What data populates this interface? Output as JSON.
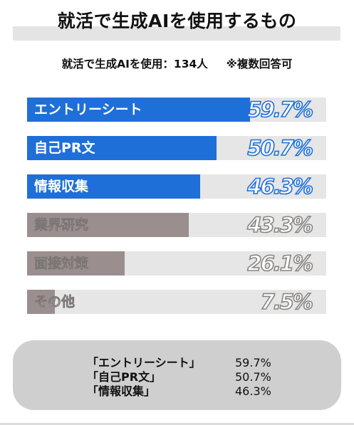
{
  "title": "就活で生成AIを使用するもの",
  "subtitle": {
    "base": "就活で生成AIを使用：134人",
    "note": "※複数回答可"
  },
  "colors": {
    "top": "#1f6fd8",
    "other": "#9a8e8e",
    "track": "#e6e6e6",
    "summary_bg": "#cfcfcf"
  },
  "chart_data": {
    "type": "bar",
    "orientation": "horizontal",
    "categories": [
      "エントリーシート",
      "自己PR文",
      "情報収集",
      "業界研究",
      "面接対策",
      "その他"
    ],
    "values": [
      59.7,
      50.7,
      46.3,
      43.3,
      26.1,
      7.5
    ],
    "value_labels": [
      "59.7%",
      "50.7%",
      "46.3%",
      "43.3%",
      "26.1%",
      "7.5%"
    ],
    "xlim": [
      0,
      80
    ],
    "highlight_top_n": 3,
    "grid": false,
    "legend": "none"
  },
  "summary": {
    "items": [
      {
        "name": "「エントリーシート」",
        "value": "59.7%"
      },
      {
        "name": "「自己PR文」",
        "value": "50.7%"
      },
      {
        "name": "「情報収集」",
        "value": "46.3%"
      }
    ]
  }
}
